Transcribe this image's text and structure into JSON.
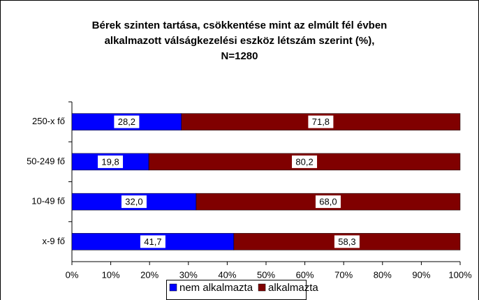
{
  "chart_data": {
    "type": "stacked-bar-horizontal",
    "title": [
      "Bérek szinten tartása, csökkentése mint az elmúlt fél évben",
      "alkalmazott válságkezelési eszköz létszám szerint (%),",
      "N=1280"
    ],
    "categories": [
      "250-x fő",
      "50-249 fő",
      "10-49 fő",
      "x-9 fő"
    ],
    "series": [
      {
        "name": "nem alkalmazta",
        "color": "#0000ff",
        "values": [
          28.2,
          19.8,
          32.0,
          41.7
        ],
        "value_labels": [
          "28,2",
          "19,8",
          "32,0",
          "41,7"
        ]
      },
      {
        "name": "alkalmazta",
        "color": "#800000",
        "values": [
          71.8,
          80.2,
          68.0,
          58.3
        ],
        "value_labels": [
          "71,8",
          "80,2",
          "68,0",
          "58,3"
        ]
      }
    ],
    "xlim": [
      0,
      100
    ],
    "xticks": [
      {
        "value": 0,
        "label": "0%"
      },
      {
        "value": 10,
        "label": "10%"
      },
      {
        "value": 20,
        "label": "20%"
      },
      {
        "value": 30,
        "label": "30%"
      },
      {
        "value": 40,
        "label": "40%"
      },
      {
        "value": 50,
        "label": "50%"
      },
      {
        "value": 60,
        "label": "60%"
      },
      {
        "value": 70,
        "label": "70%"
      },
      {
        "value": 80,
        "label": "80%"
      },
      {
        "value": 90,
        "label": "90%"
      },
      {
        "value": 100,
        "label": "100%"
      }
    ],
    "legend": "bottom"
  }
}
